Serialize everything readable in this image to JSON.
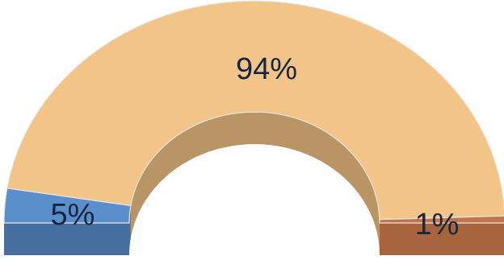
{
  "chart_data": {
    "type": "pie",
    "variant": "3d-half-doughnut",
    "title": "",
    "slices": [
      {
        "value": 5,
        "label": "5%",
        "color": "#5b8fcc",
        "side_color": "#456f9e"
      },
      {
        "value": 94,
        "label": "94%",
        "color": "#f2c487",
        "side_color": "#b99464"
      },
      {
        "value": 1,
        "label": "1%",
        "color": "#c0764a",
        "side_color": "#a8653d"
      }
    ],
    "legend": "none"
  }
}
